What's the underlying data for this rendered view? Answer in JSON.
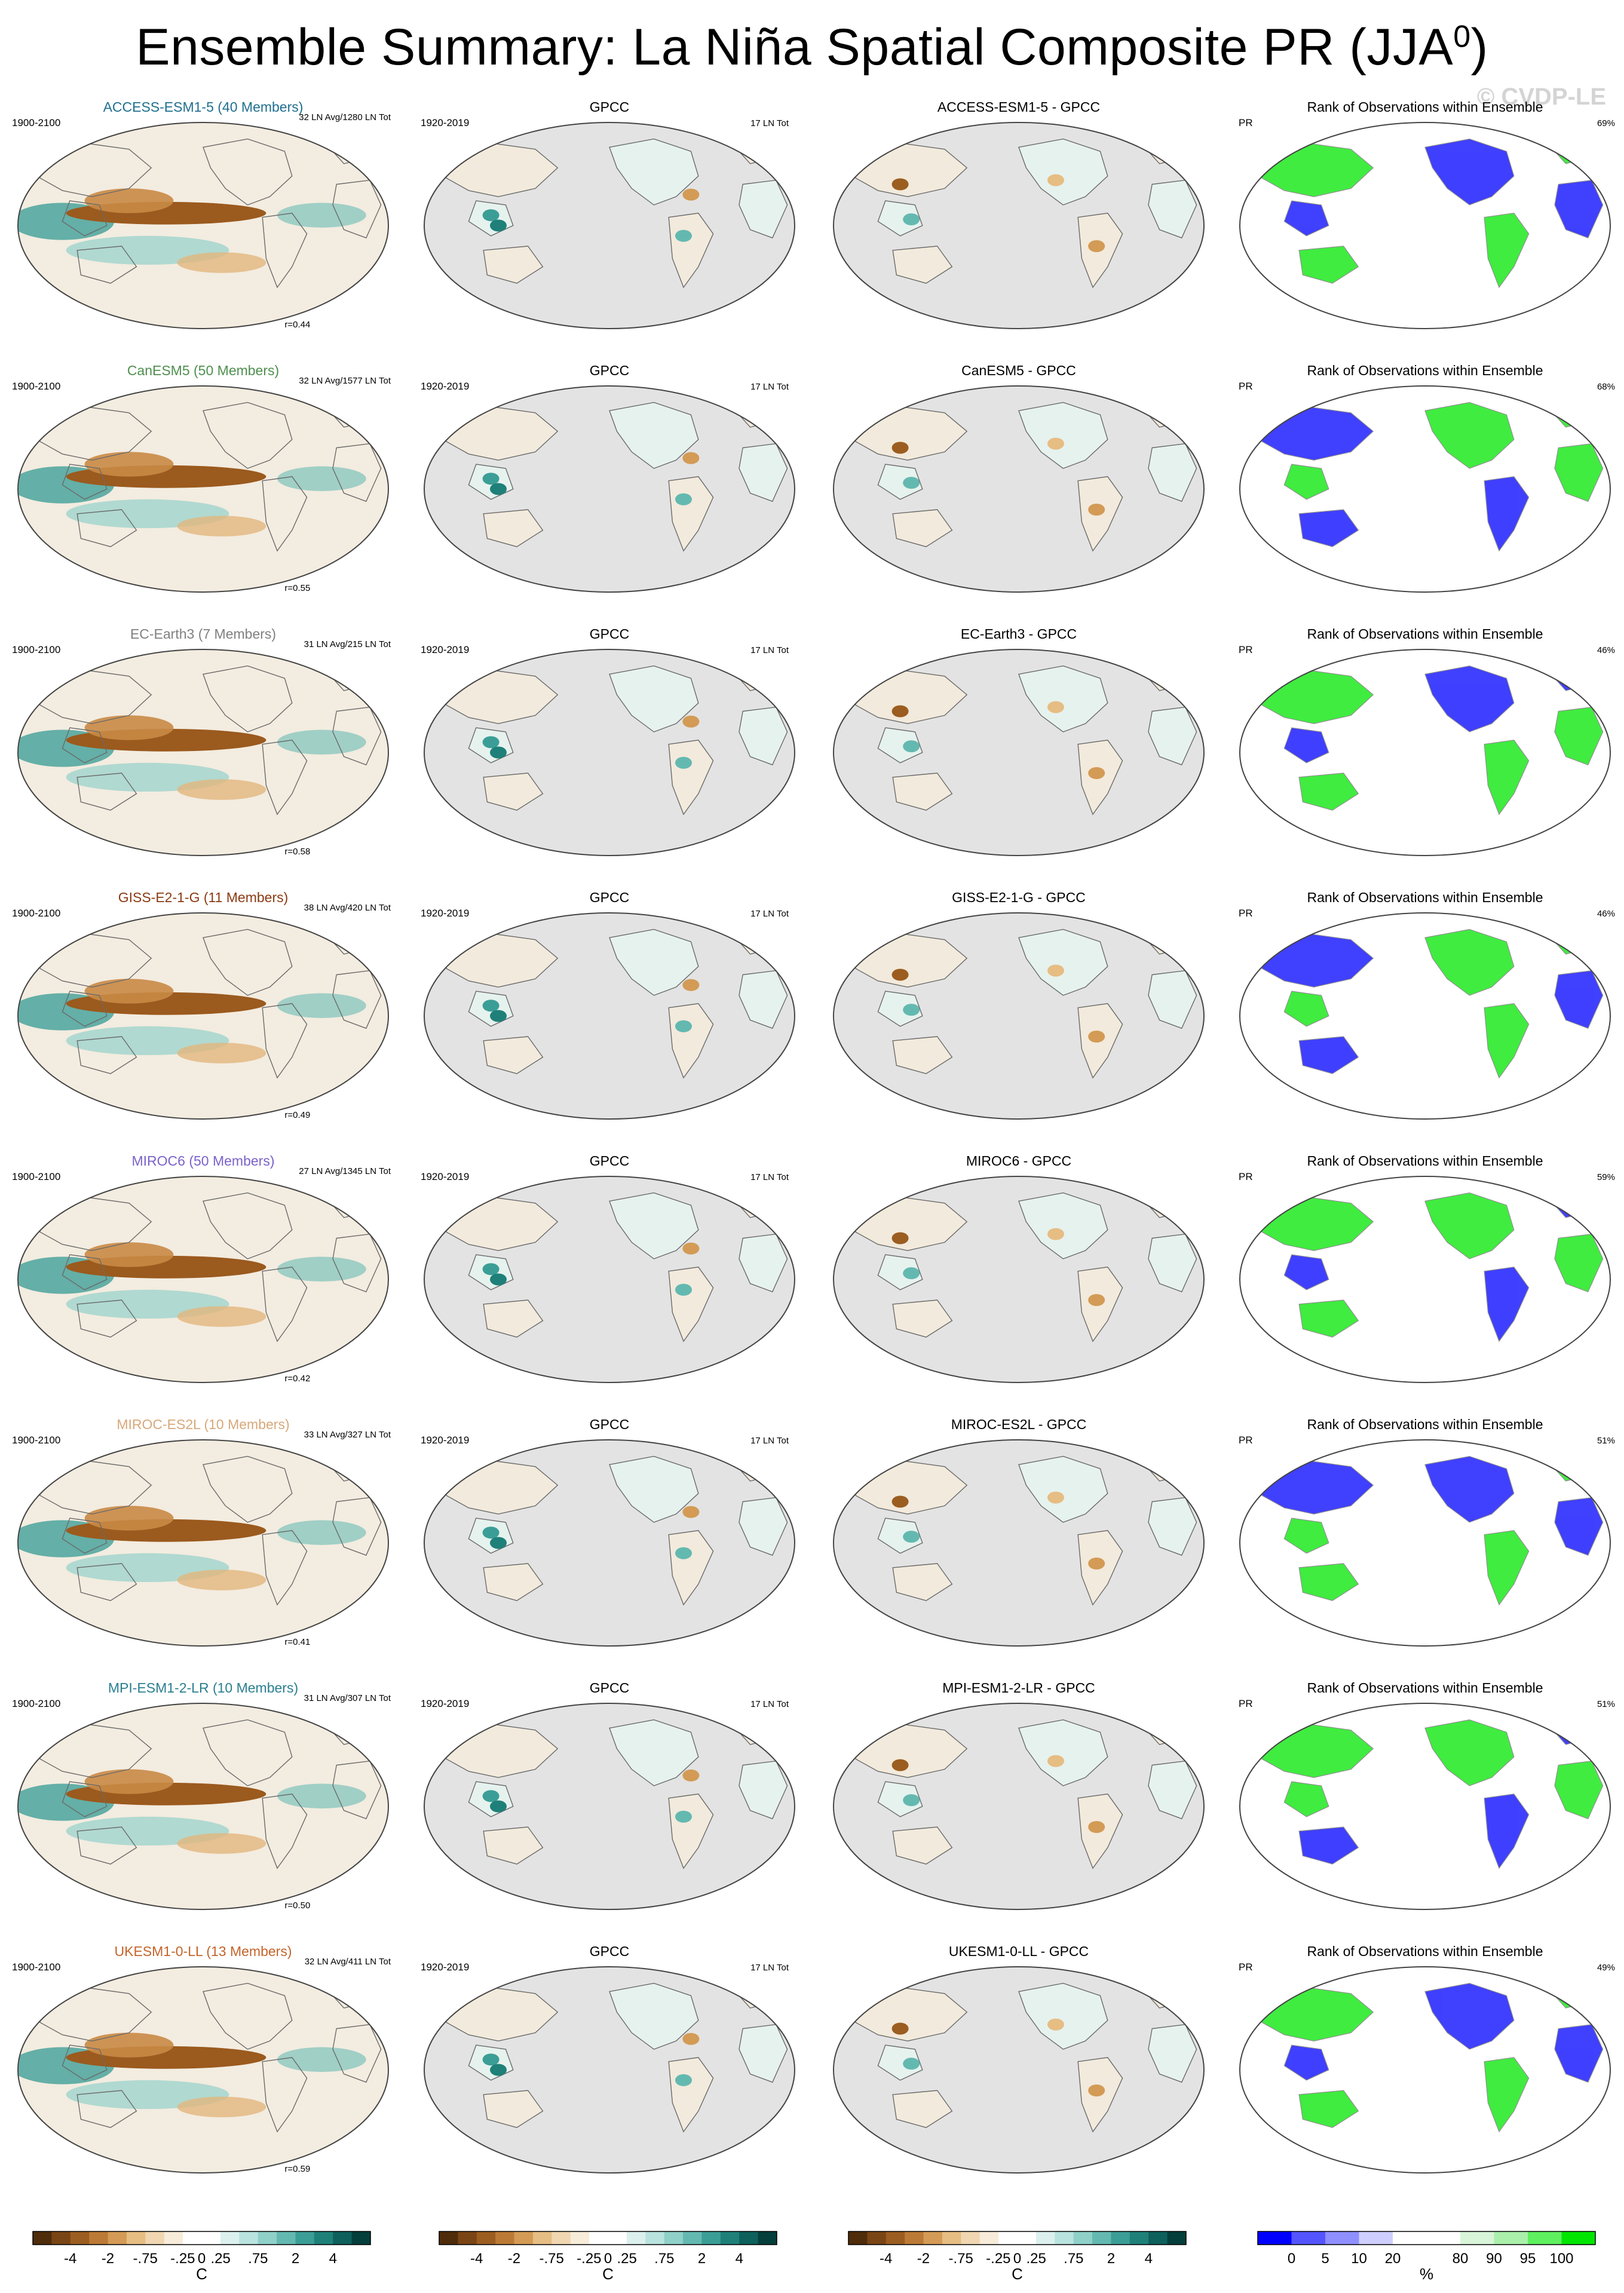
{
  "title_main": "Ensemble Summary: La Niña Spatial Composite PR (JJA",
  "title_sup": "0",
  "title_close": ")",
  "watermark": "© CVDP-LE",
  "ensemble_period": "1900-2100",
  "obs_period": "1920-2019",
  "obs_name": "GPCC",
  "obs_events": "17 LN Tot",
  "rank_title": "Rank of Observations within Ensemble",
  "rank_var": "PR",
  "models": [
    {
      "name": "ACCESS-ESM1-5 (40 Members)",
      "short": "ACCESS-ESM1-5",
      "color": "#1f6f8f",
      "avg": "32 LN Avg/1280 LN Tot",
      "r": "r=0.44",
      "diff": "ACCESS-ESM1-5 - GPCC",
      "pct": "69%"
    },
    {
      "name": "CanESM5 (50 Members)",
      "short": "CanESM5",
      "color": "#4e8f4e",
      "avg": "32 LN Avg/1577 LN Tot",
      "r": "r=0.55",
      "diff": "CanESM5 - GPCC",
      "pct": "68%"
    },
    {
      "name": "EC-Earth3 (7 Members)",
      "short": "EC-Earth3",
      "color": "#808080",
      "avg": "31 LN Avg/215 LN Tot",
      "r": "r=0.58",
      "diff": "EC-Earth3 - GPCC",
      "pct": "46%"
    },
    {
      "name": "GISS-E2-1-G (11 Members)",
      "short": "GISS-E2-1-G",
      "color": "#8b3a12",
      "avg": "38 LN Avg/420 LN Tot",
      "r": "r=0.49",
      "diff": "GISS-E2-1-G - GPCC",
      "pct": "46%"
    },
    {
      "name": "MIROC6 (50 Members)",
      "short": "MIROC6",
      "color": "#7b62c9",
      "avg": "27 LN Avg/1345 LN Tot",
      "r": "r=0.42",
      "diff": "MIROC6 - GPCC",
      "pct": "59%"
    },
    {
      "name": "MIROC-ES2L (10 Members)",
      "short": "MIROC-ES2L",
      "color": "#d8a87a",
      "avg": "33 LN Avg/327 LN Tot",
      "r": "r=0.41",
      "diff": "MIROC-ES2L - GPCC",
      "pct": "51%"
    },
    {
      "name": "MPI-ESM1-2-LR (10 Members)",
      "short": "MPI-ESM1-2-LR",
      "color": "#2a7f90",
      "avg": "31 LN Avg/307 LN Tot",
      "r": "r=0.50",
      "diff": "MPI-ESM1-2-LR - GPCC",
      "pct": "51%"
    },
    {
      "name": "UKESM1-0-LL (13 Members)",
      "short": "UKESM1-0-LL",
      "color": "#c4642a",
      "avg": "32 LN Avg/411 LN Tot",
      "r": "r=0.59",
      "diff": "UKESM1-0-LL - GPCC",
      "pct": "49%"
    }
  ],
  "colorbar_div": {
    "labels": [
      "-4",
      "-2",
      "-.75",
      "-.25",
      "0",
      ".25",
      ".75",
      "2",
      "4"
    ],
    "unit": "C",
    "colors": [
      "#4f2c0a",
      "#7a4514",
      "#9c5d20",
      "#bb7a35",
      "#d39b55",
      "#e6bd83",
      "#f0d7b1",
      "#f7ecd9",
      "#ffffff",
      "#ffffff",
      "#dcf0ee",
      "#b9e3df",
      "#8fd0c8",
      "#63b9b0",
      "#3b9e96",
      "#1e8079",
      "#0d605b",
      "#053f3b"
    ]
  },
  "colorbar_rank": {
    "labels": [
      "0",
      "5",
      "10",
      "20",
      "80",
      "90",
      "95",
      "100"
    ],
    "unit": "%",
    "colors": [
      "#0000ff",
      "#5555ff",
      "#8f8fff",
      "#cfcfff",
      "#ffffff",
      "#ffffff",
      "#d9f5d9",
      "#aaf0aa",
      "#5ef05e",
      "#00e600"
    ]
  }
}
